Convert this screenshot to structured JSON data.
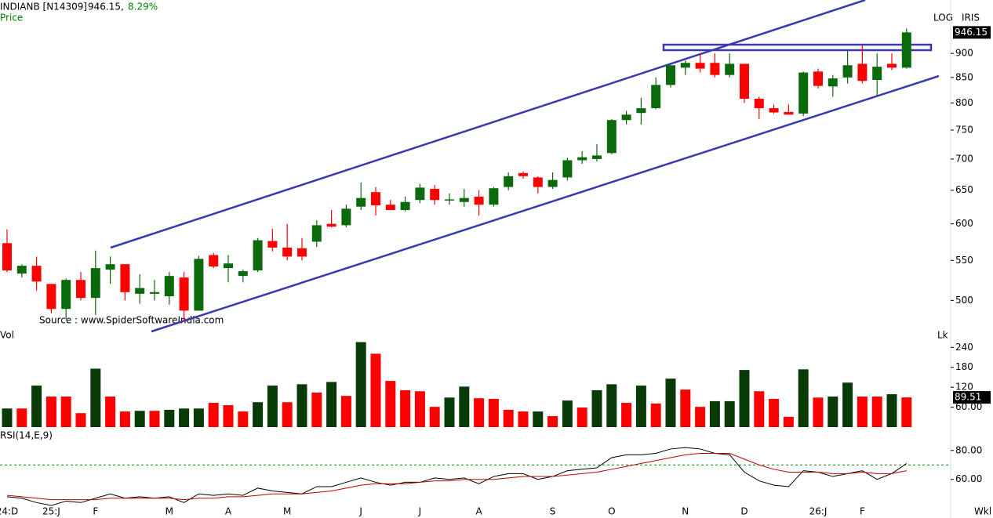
{
  "header": {
    "symbol": "INDIANB [N14309]",
    "last": "946.15,",
    "change": "8.29%"
  },
  "chart_data": [
    {
      "type": "candlestick",
      "label": "Price",
      "scale": "log",
      "scale_label": "LOG",
      "indicator_label": "IRIS",
      "annotation": "Source : www.SpiderSoftwareIndia.com",
      "up_color": "#0b6a0b",
      "down_color": "#ff0000",
      "ylim": [
        467,
        1022
      ],
      "yticks": [
        500,
        550,
        600,
        650,
        700,
        750,
        800,
        850,
        900
      ],
      "open": [
        573,
        533,
        543,
        520,
        490,
        525,
        503,
        538,
        545,
        508,
        508,
        505,
        528,
        488,
        557,
        540,
        530,
        537,
        576,
        567,
        566,
        575,
        600,
        598,
        625,
        647,
        628,
        620,
        635,
        652,
        635,
        632,
        640,
        628,
        655,
        677,
        670,
        655,
        670,
        698,
        700,
        710,
        768,
        781,
        790,
        835,
        870,
        880,
        880,
        855,
        878,
        808,
        790,
        783,
        780,
        862,
        832,
        850,
        878,
        845,
        878,
        870
      ],
      "high": [
        592,
        545,
        555,
        520,
        527,
        535,
        563,
        555,
        545,
        532,
        525,
        535,
        535,
        556,
        560,
        557,
        538,
        580,
        593,
        600,
        580,
        605,
        620,
        628,
        662,
        655,
        635,
        640,
        660,
        658,
        645,
        652,
        650,
        655,
        678,
        680,
        672,
        678,
        702,
        713,
        725,
        770,
        785,
        810,
        850,
        875,
        885,
        898,
        900,
        900,
        878,
        812,
        797,
        797,
        862,
        868,
        855,
        905,
        918,
        900,
        900,
        955
      ],
      "low": [
        535,
        528,
        512,
        485,
        478,
        500,
        483,
        520,
        500,
        496,
        500,
        495,
        476,
        488,
        540,
        522,
        522,
        535,
        562,
        550,
        550,
        568,
        595,
        595,
        620,
        612,
        620,
        618,
        630,
        628,
        628,
        625,
        612,
        625,
        650,
        668,
        645,
        652,
        665,
        692,
        696,
        708,
        760,
        760,
        788,
        830,
        855,
        860,
        850,
        850,
        800,
        770,
        780,
        778,
        775,
        828,
        812,
        838,
        838,
        812,
        865,
        868
      ],
      "close": [
        537,
        543,
        523,
        490,
        525,
        503,
        540,
        545,
        510,
        515,
        510,
        530,
        488,
        552,
        542,
        546,
        536,
        577,
        567,
        555,
        555,
        598,
        596,
        622,
        638,
        627,
        620,
        632,
        654,
        635,
        636,
        638,
        628,
        653,
        672,
        672,
        655,
        666,
        698,
        703,
        706,
        768,
        778,
        790,
        835,
        875,
        880,
        868,
        855,
        878,
        808,
        790,
        782,
        778,
        860,
        833,
        848,
        875,
        843,
        872,
        870,
        946.15
      ]
    },
    {
      "type": "bar",
      "label": "Vol",
      "unit_label": "Lk",
      "ylim": [
        0,
        262
      ],
      "yticks": [
        240,
        180,
        120,
        {
          "value": 60,
          "label": "60.00"
        }
      ],
      "values": [
        56,
        56,
        125,
        92,
        92,
        42,
        176,
        92,
        47,
        49,
        49,
        52,
        56,
        56,
        73,
        66,
        47,
        75,
        125,
        75,
        129,
        104,
        136,
        94,
        256,
        221,
        139,
        111,
        108,
        61,
        89,
        122,
        87,
        85,
        52,
        47,
        47,
        33,
        80,
        59,
        111,
        129,
        73,
        125,
        71,
        146,
        113,
        61,
        78,
        78,
        172,
        108,
        85,
        31,
        174,
        89,
        92,
        134,
        92,
        92,
        99,
        89.51
      ],
      "colors": [
        "#083b08",
        "#ff0000",
        "#083b08",
        "#ff0000",
        "#ff0000",
        "#ff0000",
        "#083b08",
        "#ff0000",
        "#ff0000",
        "#083b08",
        "#ff0000",
        "#083b08",
        "#083b08",
        "#083b08",
        "#ff0000",
        "#ff0000",
        "#ff0000",
        "#083b08",
        "#083b08",
        "#ff0000",
        "#083b08",
        "#ff0000",
        "#083b08",
        "#ff0000",
        "#083b08",
        "#ff0000",
        "#ff0000",
        "#ff0000",
        "#ff0000",
        "#ff0000",
        "#083b08",
        "#083b08",
        "#ff0000",
        "#ff0000",
        "#ff0000",
        "#ff0000",
        "#083b08",
        "#ff0000",
        "#083b08",
        "#ff0000",
        "#083b08",
        "#083b08",
        "#ff0000",
        "#083b08",
        "#ff0000",
        "#083b08",
        "#ff0000",
        "#ff0000",
        "#083b08",
        "#083b08",
        "#083b08",
        "#ff0000",
        "#ff0000",
        "#ff0000",
        "#083b08",
        "#ff0000",
        "#083b08",
        "#083b08",
        "#ff0000",
        "#ff0000",
        "#083b08",
        "#ff0000"
      ]
    },
    {
      "type": "line",
      "label": "RSI(14,E,9)",
      "period_label": "Wkl",
      "ylim": [
        42,
        88
      ],
      "yticks": [
        {
          "value": 80,
          "label": "80.00"
        },
        {
          "value": 60,
          "label": "60.00"
        }
      ],
      "level": 70,
      "level_color": "#008000",
      "categories": [
        "24:D",
        null,
        null,
        "25:J",
        null,
        null,
        "F",
        null,
        null,
        null,
        null,
        "M",
        null,
        null,
        null,
        "A",
        null,
        null,
        null,
        "M",
        null,
        null,
        null,
        null,
        "J",
        null,
        null,
        null,
        "J",
        null,
        null,
        null,
        "A",
        null,
        null,
        null,
        null,
        "S",
        null,
        null,
        null,
        "O",
        null,
        null,
        null,
        null,
        "N",
        null,
        null,
        null,
        "D",
        null,
        null,
        null,
        null,
        "26:J",
        null,
        null,
        "F",
        null,
        null,
        null
      ],
      "series": [
        {
          "color": "#000000",
          "values": [
            48,
            47,
            44,
            42,
            45,
            44,
            47,
            50,
            47,
            48,
            47,
            48,
            44,
            50,
            49,
            50,
            49,
            54,
            52,
            51,
            50,
            55,
            55,
            58,
            61,
            58,
            56,
            58,
            58,
            61,
            60,
            61,
            57,
            62,
            64,
            64,
            60,
            62,
            66,
            67,
            68,
            75,
            77,
            77,
            78,
            81,
            82,
            81,
            78,
            77,
            65,
            59,
            56,
            55,
            66,
            65,
            62,
            64,
            66,
            60,
            64,
            71
          ]
        },
        {
          "color": "#c00000",
          "values": [
            49,
            48,
            47,
            46,
            46,
            46,
            46,
            47,
            47,
            47,
            47,
            47,
            46,
            47,
            47,
            48,
            48,
            49,
            50,
            50,
            50,
            51,
            52,
            54,
            56,
            57,
            57,
            57,
            58,
            59,
            59,
            60,
            60,
            60,
            61,
            62,
            62,
            62,
            63,
            64,
            65,
            67,
            69,
            71,
            73,
            75,
            77,
            78,
            78,
            78,
            74,
            70,
            67,
            65,
            65,
            65,
            64,
            64,
            65,
            64,
            64,
            66
          ]
        }
      ]
    }
  ]
}
